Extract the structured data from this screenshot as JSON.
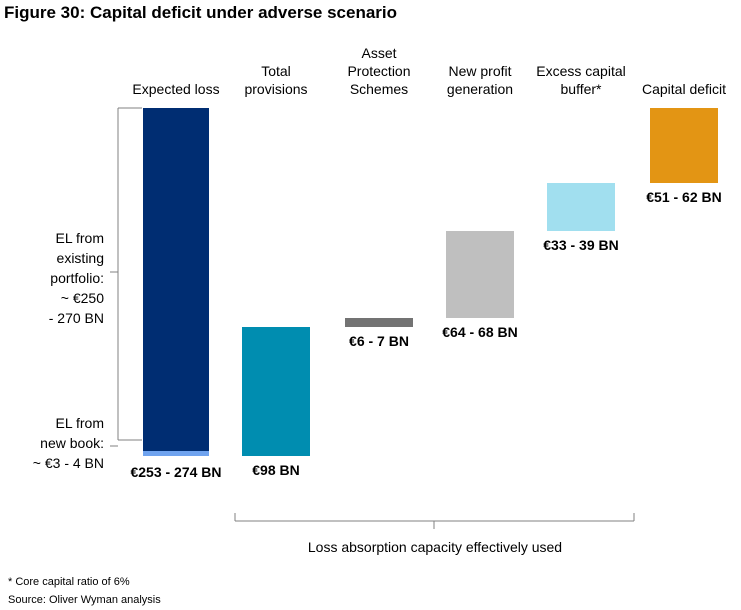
{
  "title": "Figure 30: Capital deficit under adverse scenario",
  "chart_data": {
    "type": "waterfall",
    "unit": "€ BN",
    "categories": [
      "Expected loss",
      "Total provisions",
      "Asset Protection Schemes",
      "New profit generation",
      "Excess capital buffer*",
      "Capital deficit"
    ],
    "category_lines": [
      [
        "Expected loss"
      ],
      [
        "Total",
        "provisions"
      ],
      [
        "Asset",
        "Protection",
        "Schemes"
      ],
      [
        "New profit",
        "generation"
      ],
      [
        "Excess capital",
        "buffer*"
      ],
      [
        "Capital deficit"
      ]
    ],
    "ranges": [
      [
        253,
        274
      ],
      [
        98,
        98
      ],
      [
        6,
        7
      ],
      [
        64,
        68
      ],
      [
        33,
        39
      ],
      [
        51,
        62
      ]
    ],
    "values": [
      263.5,
      98,
      6.5,
      66,
      36,
      56.5
    ],
    "value_labels": [
      "€253 - 274 BN",
      "€98 BN",
      "€6 - 7 BN",
      "€64 - 68 BN",
      "€33 - 39 BN",
      "€51 - 62 BN"
    ],
    "colors": [
      "#002d72",
      "#008db0",
      "#737373",
      "#bfbfbf",
      "#a1dfef",
      "#e39514"
    ],
    "expected_loss_split": {
      "existing_portfolio": {
        "lines": [
          "EL from",
          "existing",
          "portfolio:",
          "~ €250",
          "- 270 BN"
        ],
        "color": "#002d72"
      },
      "new_book": {
        "lines": [
          "EL from",
          "new book:",
          "~ €3 - 4 BN"
        ],
        "color": "#6fa3ef"
      }
    },
    "bracket_label": "Loss absorption capacity effectively used"
  },
  "footnotes": [
    "* Core capital ratio of 6%",
    "Source: Oliver Wyman analysis"
  ]
}
